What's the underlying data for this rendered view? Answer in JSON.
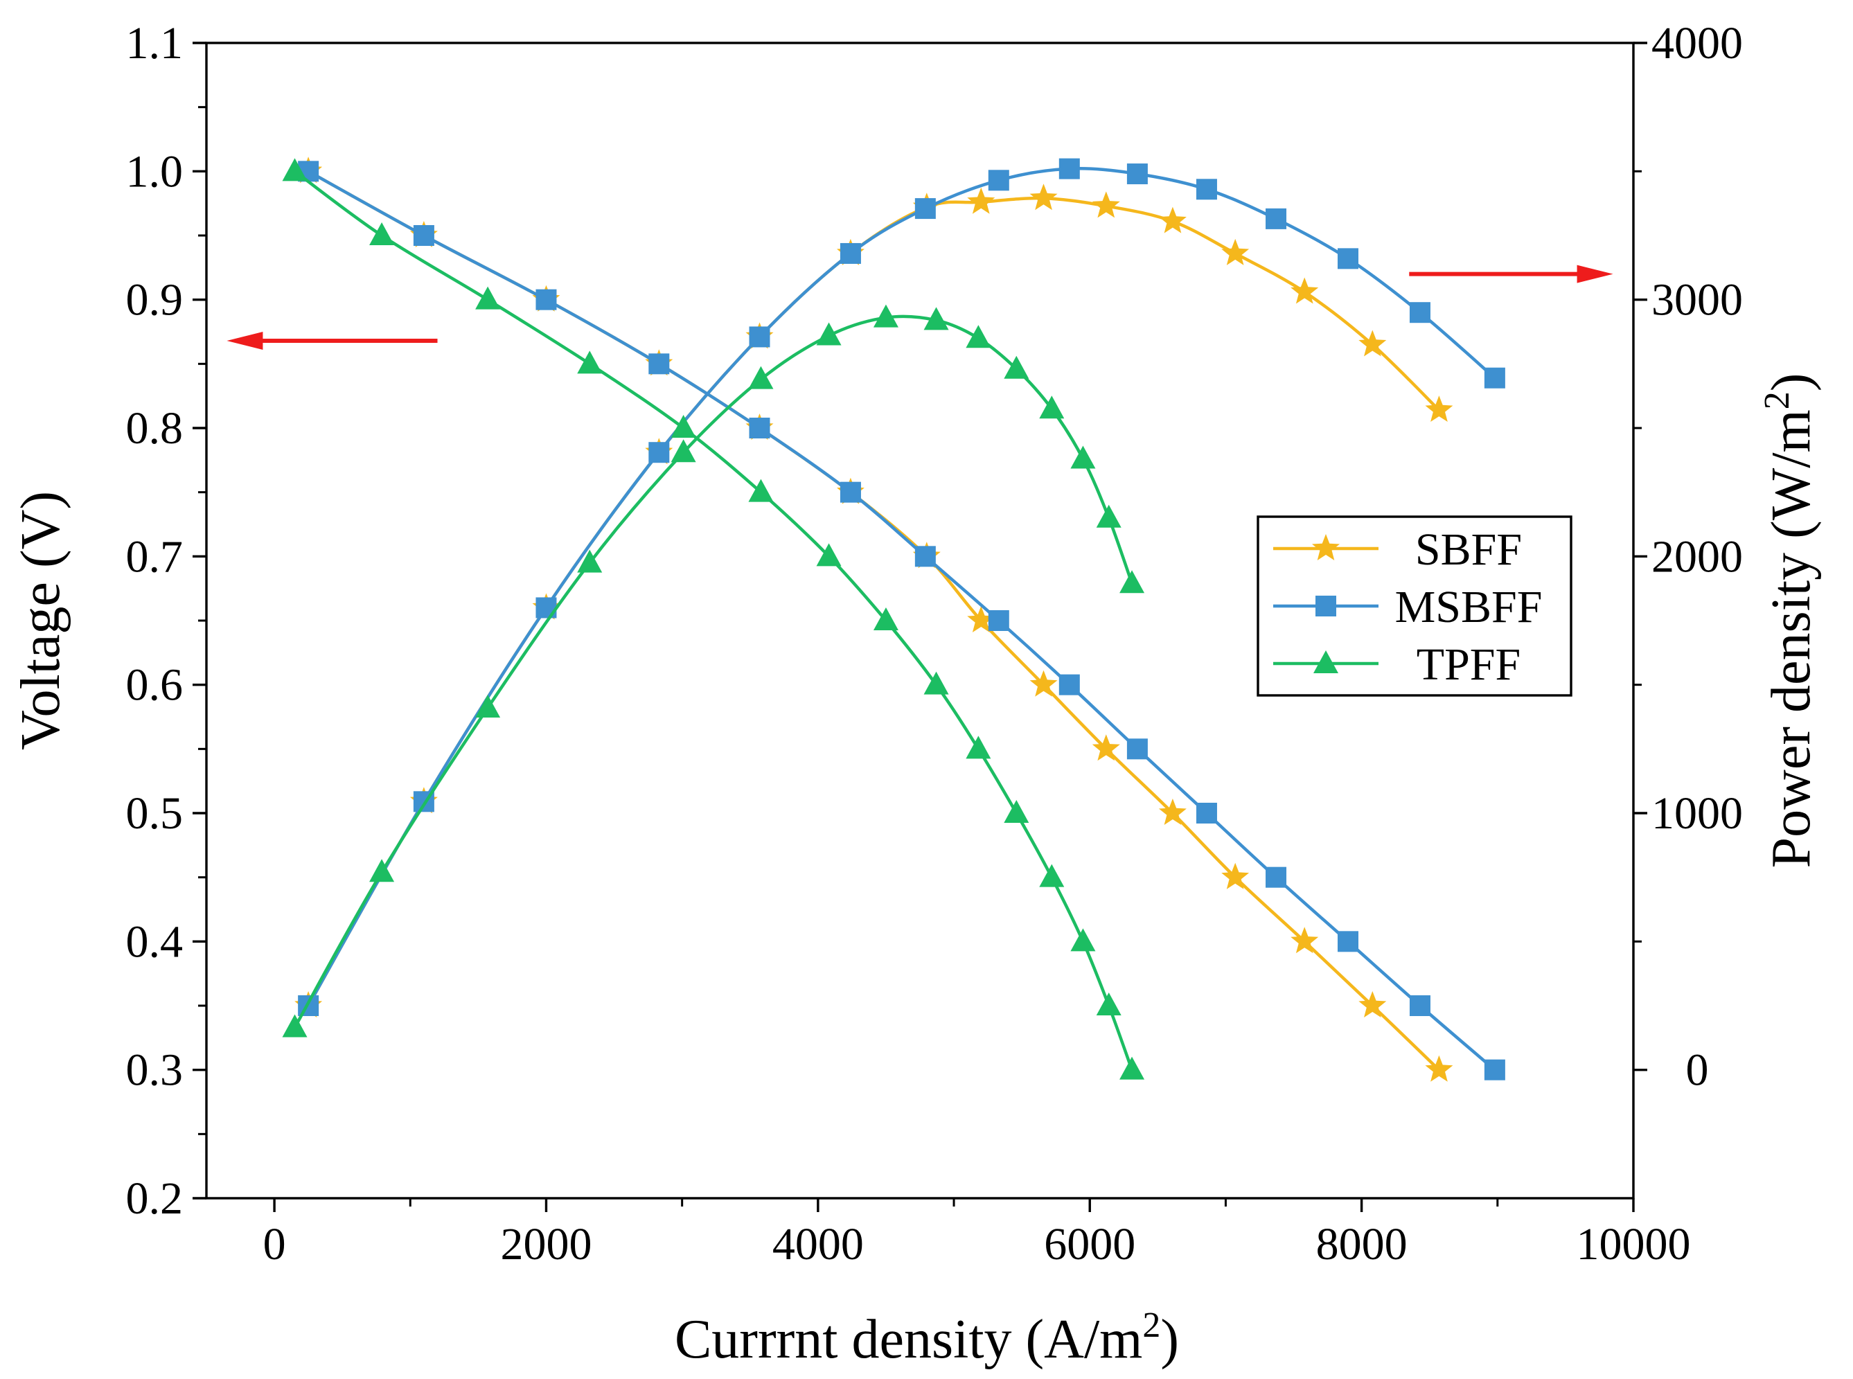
{
  "chart_data": {
    "type": "line",
    "title": "",
    "xlabel": "Currrnt density (A/m",
    "xlabel_sup": "2",
    "xlabel_end": ")",
    "ylabel_left": "Voltage (V)",
    "ylabel_right": "Power density (W/m",
    "ylabel_right_sup": "2",
    "ylabel_right_end": ")",
    "xlim": [
      -500,
      10000
    ],
    "ylim_left": [
      0.2,
      1.1
    ],
    "ylim_right": [
      -500,
      4000
    ],
    "x_ticks": [
      0,
      2000,
      4000,
      6000,
      8000,
      10000
    ],
    "x_tick_labels": [
      "0",
      "2000",
      "4000",
      "6000",
      "8000",
      "10000"
    ],
    "y_left_ticks": [
      0.2,
      0.3,
      0.4,
      0.5,
      0.6,
      0.7,
      0.8,
      0.9,
      1.0,
      1.1
    ],
    "y_left_tick_labels": [
      "0.2",
      "0.3",
      "0.4",
      "0.5",
      "0.6",
      "0.7",
      "0.8",
      "0.9",
      "1.0",
      "1.1"
    ],
    "y_right_ticks": [
      0,
      1000,
      2000,
      3000,
      4000
    ],
    "y_right_tick_labels": [
      "0",
      "1000",
      "2000",
      "3000",
      "4000"
    ],
    "legend_position": "center-right",
    "arrows": [
      {
        "direction": "left",
        "points_to_axis": "left",
        "color": "#ee1c1c",
        "x_from": 1200,
        "x_to": -350,
        "y_left": 0.868
      },
      {
        "direction": "right",
        "points_to_axis": "right",
        "color": "#ee1c1c",
        "x_from": 8350,
        "x_to": 9850,
        "y_left": 0.92
      }
    ],
    "series": [
      {
        "name": "SBFF",
        "color": "#f5b71c",
        "marker": "star",
        "polarization": {
          "x": [
            250,
            1100,
            2000,
            2830,
            3570,
            4240,
            4800,
            5200,
            5660,
            6120,
            6610,
            7070,
            7580,
            8080,
            8570
          ],
          "voltage": [
            1.0,
            0.95,
            0.9,
            0.85,
            0.8,
            0.75,
            0.7,
            0.65,
            0.6,
            0.55,
            0.5,
            0.45,
            0.4,
            0.35,
            0.3
          ]
        },
        "power": {
          "x": [
            250,
            1100,
            2000,
            2830,
            3570,
            4240,
            4800,
            5200,
            5660,
            6120,
            6610,
            7070,
            7580,
            8080,
            8570
          ],
          "power_density": [
            250,
            1045,
            1800,
            2405,
            2855,
            3180,
            3360,
            3380,
            3395,
            3365,
            3305,
            3180,
            3030,
            2825,
            2570
          ]
        }
      },
      {
        "name": "MSBFF",
        "color": "#3e90d0",
        "marker": "square",
        "polarization": {
          "x": [
            250,
            1100,
            2000,
            2830,
            3570,
            4240,
            4790,
            5330,
            5850,
            6350,
            6860,
            7370,
            7900,
            8430,
            8980
          ],
          "voltage": [
            1.0,
            0.95,
            0.9,
            0.85,
            0.8,
            0.75,
            0.7,
            0.65,
            0.6,
            0.55,
            0.5,
            0.45,
            0.4,
            0.35,
            0.3
          ]
        },
        "power": {
          "x": [
            250,
            1100,
            2000,
            2830,
            3570,
            4240,
            4790,
            5330,
            5850,
            6350,
            6860,
            7370,
            7900,
            8430,
            8980
          ],
          "power_density": [
            250,
            1045,
            1800,
            2405,
            2855,
            3180,
            3355,
            3465,
            3510,
            3490,
            3430,
            3315,
            3160,
            2950,
            2695
          ]
        }
      },
      {
        "name": "TPFF",
        "color": "#1cbd62",
        "marker": "triangle",
        "polarization": {
          "x": [
            150,
            790,
            1570,
            2320,
            3010,
            3580,
            4080,
            4500,
            4870,
            5180,
            5460,
            5720,
            5950,
            6140,
            6310
          ],
          "voltage": [
            1.0,
            0.95,
            0.9,
            0.85,
            0.8,
            0.75,
            0.7,
            0.65,
            0.6,
            0.55,
            0.5,
            0.45,
            0.4,
            0.35,
            0.3
          ]
        },
        "power": {
          "x": [
            150,
            790,
            1570,
            2320,
            3010,
            3580,
            4080,
            4500,
            4870,
            5180,
            5460,
            5720,
            5950,
            6140,
            6310
          ],
          "power_density": [
            165,
            770,
            1410,
            1975,
            2405,
            2690,
            2860,
            2930,
            2920,
            2850,
            2730,
            2575,
            2380,
            2150,
            1895
          ]
        }
      }
    ]
  }
}
